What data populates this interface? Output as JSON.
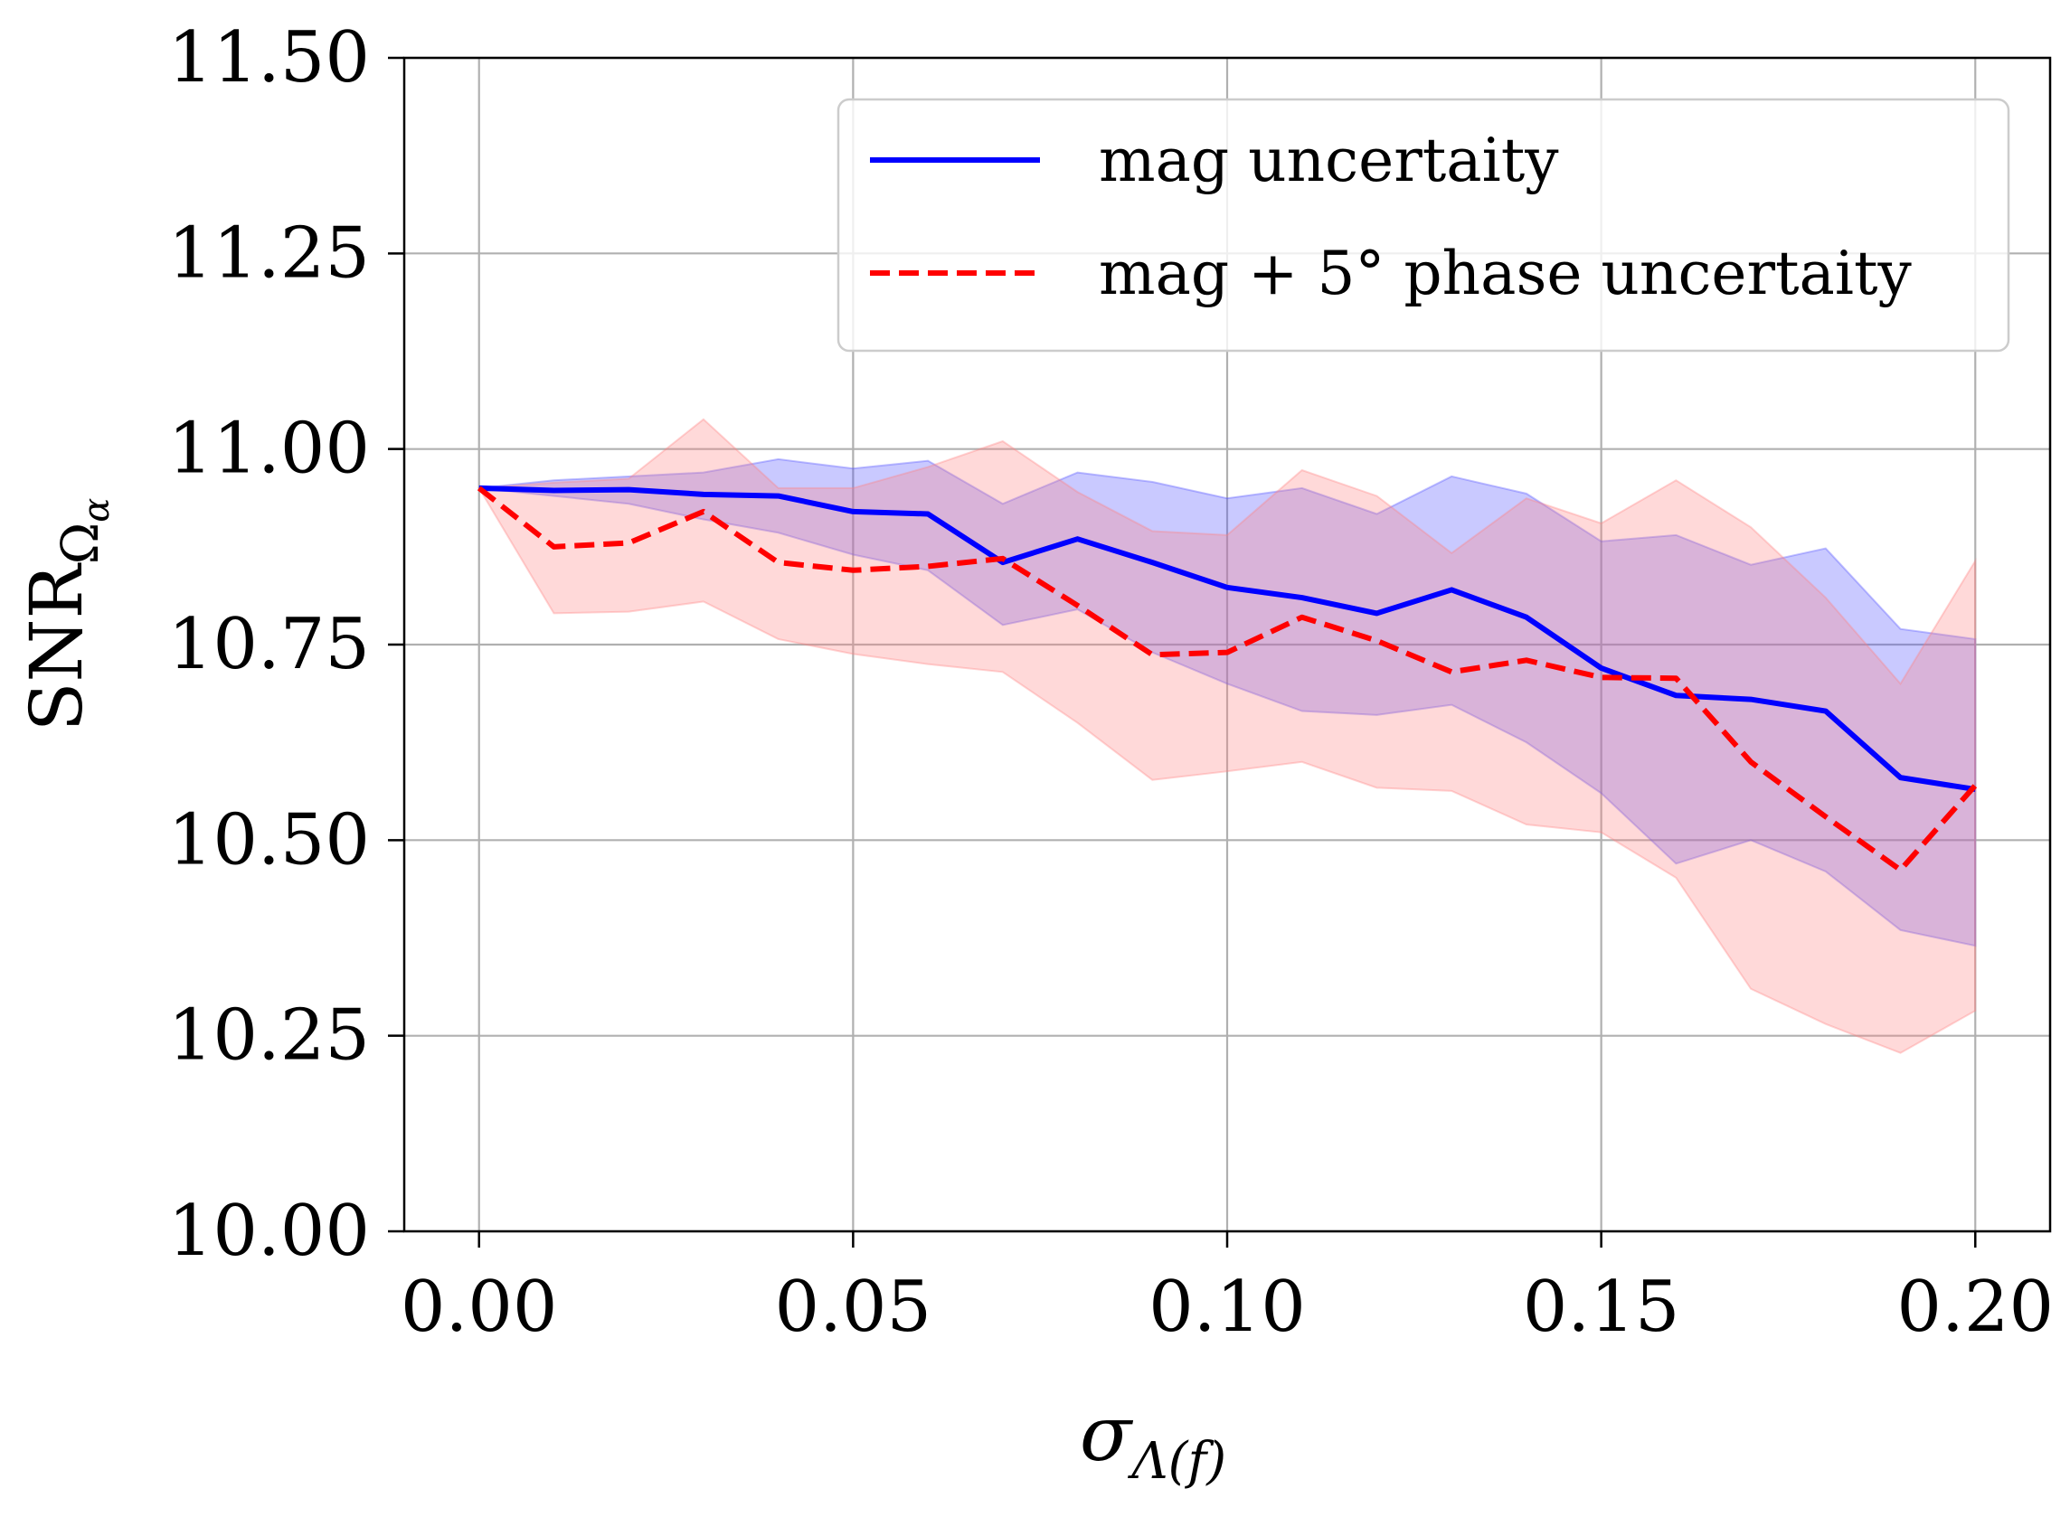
{
  "chart_data": {
    "type": "line",
    "title": "",
    "xlabel": "σ",
    "xlabel_sub": "Λ(f)",
    "ylabel": "SNR",
    "ylabel_sub": "Ω",
    "ylabel_subsub": "α",
    "xlim": [
      -0.01,
      0.21
    ],
    "ylim": [
      10.0,
      11.5
    ],
    "xticks": [
      0.0,
      0.05,
      0.1,
      0.15,
      0.2
    ],
    "xtick_labels": [
      "0.00",
      "0.05",
      "0.10",
      "0.15",
      "0.20"
    ],
    "yticks": [
      10.0,
      10.25,
      10.5,
      10.75,
      11.0,
      11.25,
      11.5
    ],
    "ytick_labels": [
      "10.00",
      "10.25",
      "10.50",
      "10.75",
      "11.00",
      "11.25",
      "11.50"
    ],
    "grid": true,
    "legend_position": "top-right",
    "x": [
      0.0,
      0.01,
      0.02,
      0.03,
      0.04,
      0.05,
      0.06,
      0.07,
      0.08,
      0.09,
      0.1,
      0.11,
      0.12,
      0.13,
      0.14,
      0.15,
      0.16,
      0.17,
      0.18,
      0.19,
      0.2
    ],
    "series": [
      {
        "name": "mag uncertaity",
        "color": "#0000ff",
        "band_color": "#4d4dff",
        "linestyle": "solid",
        "values": [
          10.95,
          10.947,
          10.948,
          10.942,
          10.94,
          10.92,
          10.917,
          10.855,
          10.885,
          10.855,
          10.823,
          10.81,
          10.79,
          10.82,
          10.785,
          10.72,
          10.685,
          10.68,
          10.665,
          10.58,
          10.565
        ],
        "upper": [
          10.95,
          10.96,
          10.965,
          10.97,
          10.987,
          10.975,
          10.985,
          10.93,
          10.97,
          10.958,
          10.937,
          10.95,
          10.917,
          10.965,
          10.943,
          10.882,
          10.89,
          10.852,
          10.873,
          10.77,
          10.757
        ],
        "lower": [
          10.95,
          10.94,
          10.93,
          10.91,
          10.893,
          10.865,
          10.845,
          10.775,
          10.795,
          10.74,
          10.7,
          10.665,
          10.66,
          10.673,
          10.625,
          10.56,
          10.47,
          10.5,
          10.46,
          10.385,
          10.365
        ]
      },
      {
        "name": "mag + 5° phase uncertaity",
        "color": "#ff0000",
        "band_color": "#ff8080",
        "linestyle": "dashed",
        "values": [
          10.95,
          10.875,
          10.88,
          10.92,
          10.855,
          10.845,
          10.85,
          10.86,
          10.8,
          10.737,
          10.74,
          10.785,
          10.755,
          10.715,
          10.73,
          10.708,
          10.707,
          10.6,
          10.53,
          10.462,
          10.57
        ],
        "upper": [
          10.95,
          10.957,
          10.962,
          11.038,
          10.95,
          10.95,
          10.977,
          11.01,
          10.945,
          10.895,
          10.89,
          10.973,
          10.94,
          10.867,
          10.937,
          10.905,
          10.96,
          10.9,
          10.81,
          10.7,
          10.857
        ],
        "lower": [
          10.95,
          10.79,
          10.792,
          10.805,
          10.757,
          10.738,
          10.725,
          10.715,
          10.65,
          10.577,
          10.588,
          10.6,
          10.567,
          10.563,
          10.52,
          10.51,
          10.452,
          10.31,
          10.265,
          10.228,
          10.282
        ]
      }
    ]
  }
}
